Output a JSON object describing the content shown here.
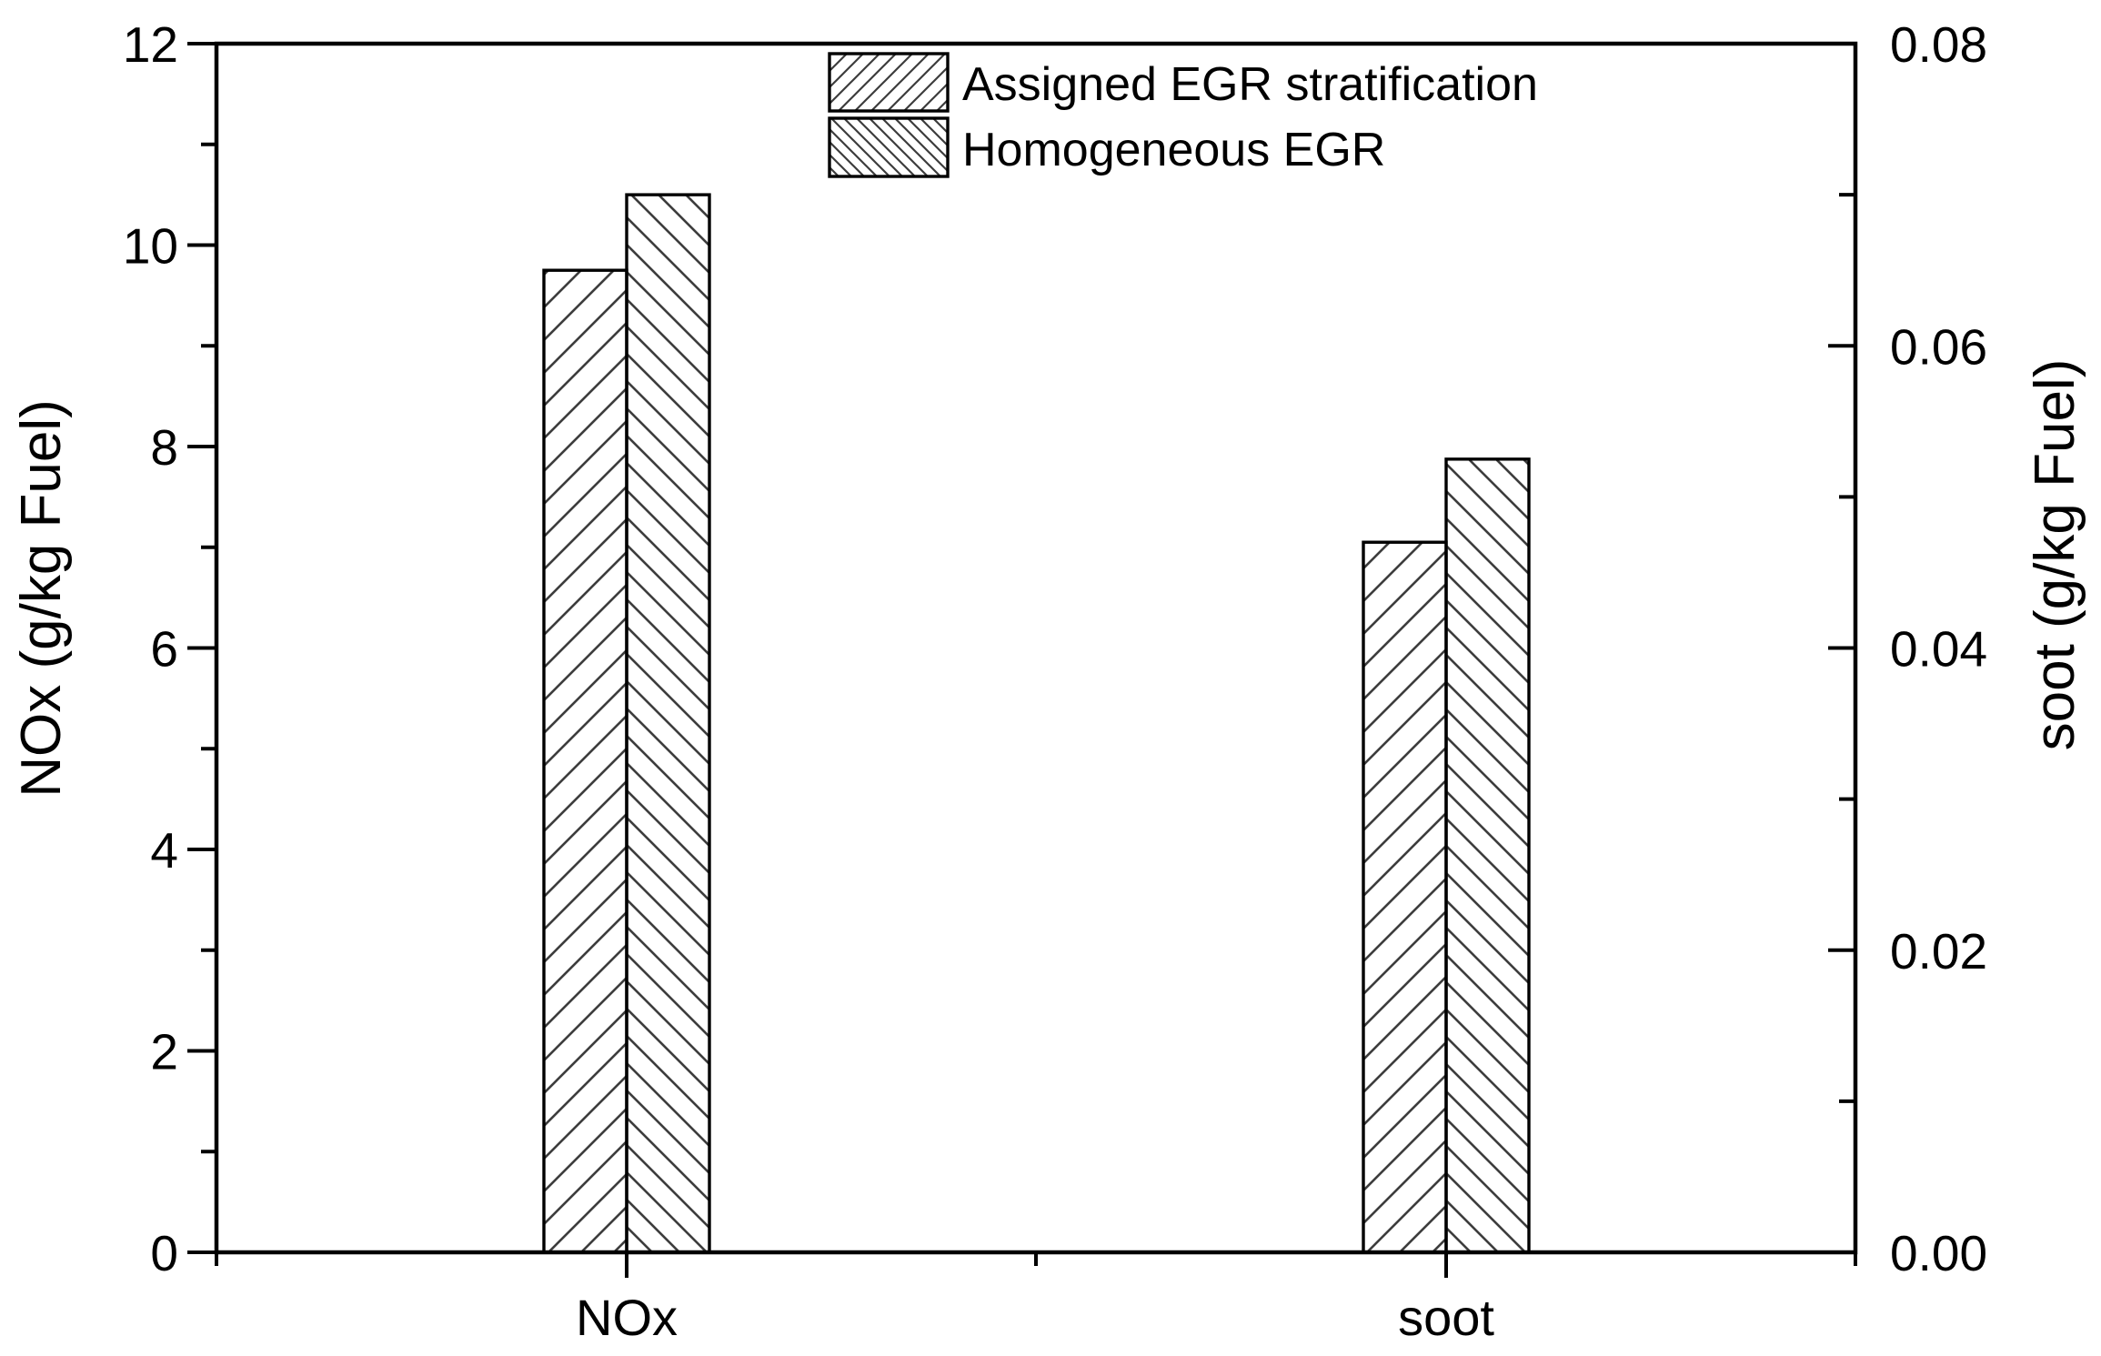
{
  "figure": {
    "background_color": "#ffffff",
    "axis_color": "#000000",
    "hatch_color": "#3d3d3d"
  },
  "chart_data": {
    "type": "bar",
    "title": "",
    "categories": [
      "NOx",
      "soot"
    ],
    "series": [
      {
        "name": "Assigned EGR stratification",
        "hatch": "forward-diagonal",
        "values": [
          9.75,
          0.047
        ],
        "units": [
          "g/kg Fuel (left axis)",
          "g/kg Fuel (right axis)"
        ]
      },
      {
        "name": "Homogeneous EGR",
        "hatch": "back-diagonal",
        "values": [
          10.5,
          0.0525
        ],
        "units": [
          "g/kg Fuel (left axis)",
          "g/kg Fuel (right axis)"
        ]
      }
    ],
    "left_axis": {
      "title": "NOx (g/kg Fuel)",
      "min": 0,
      "max": 12,
      "major_step": 2,
      "minor_step": 1,
      "tick_labels": [
        "0",
        "2",
        "4",
        "6",
        "8",
        "10",
        "12"
      ],
      "applies_to_category": "NOx"
    },
    "right_axis": {
      "title": "soot (g/kg Fuel)",
      "min": 0,
      "max": 0.08,
      "major_step": 0.02,
      "minor_step": 0.01,
      "tick_labels": [
        "0.00",
        "0.02",
        "0.04",
        "0.06",
        "0.08"
      ],
      "applies_to_category": "soot"
    },
    "x_axis": {
      "category_labels": [
        "NOx",
        "soot"
      ]
    },
    "legend": {
      "position": "top-inside",
      "entries": [
        "Assigned EGR stratification",
        "Homogeneous EGR"
      ]
    },
    "grid": false
  }
}
